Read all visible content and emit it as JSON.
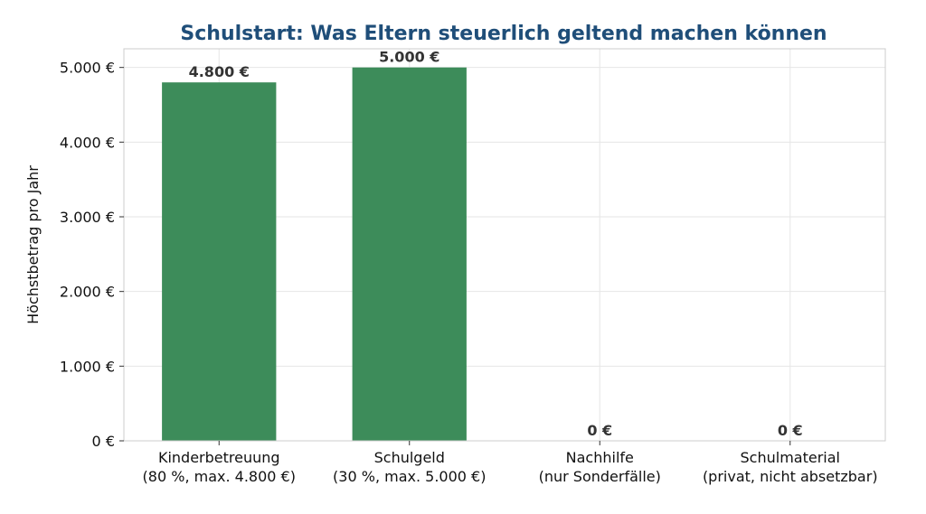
{
  "chart_data": {
    "type": "bar",
    "title": "Schulstart: Was Eltern steuerlich geltend machen können",
    "ylabel": "Höchstbetrag pro Jahr",
    "xlabel": "",
    "categories": [
      [
        "Kinderbetreuung",
        "(80 %, max. 4.800 €)"
      ],
      [
        "Schulgeld",
        "(30 %, max. 5.000 €)"
      ],
      [
        "Nachhilfe",
        "(nur Sonderfälle)"
      ],
      [
        "Schulmaterial",
        "(privat, nicht absetzbar)"
      ]
    ],
    "values": [
      4800,
      5000,
      0,
      0
    ],
    "data_labels": [
      "4.800 €",
      "5.000 €",
      "0 €",
      "0 €"
    ],
    "ylim": [
      0,
      5250
    ],
    "yticks": [
      0,
      1000,
      2000,
      3000,
      4000,
      5000
    ],
    "ytick_labels": [
      "0 €",
      "1.000 €",
      "2.000 €",
      "3.000 €",
      "4.000 €",
      "5.000 €"
    ],
    "grid": true,
    "colors": {
      "bar": "#3d8c5a",
      "title": "#1f4e79",
      "grid": "#e6e6e6",
      "axis": "#cccccc"
    }
  }
}
